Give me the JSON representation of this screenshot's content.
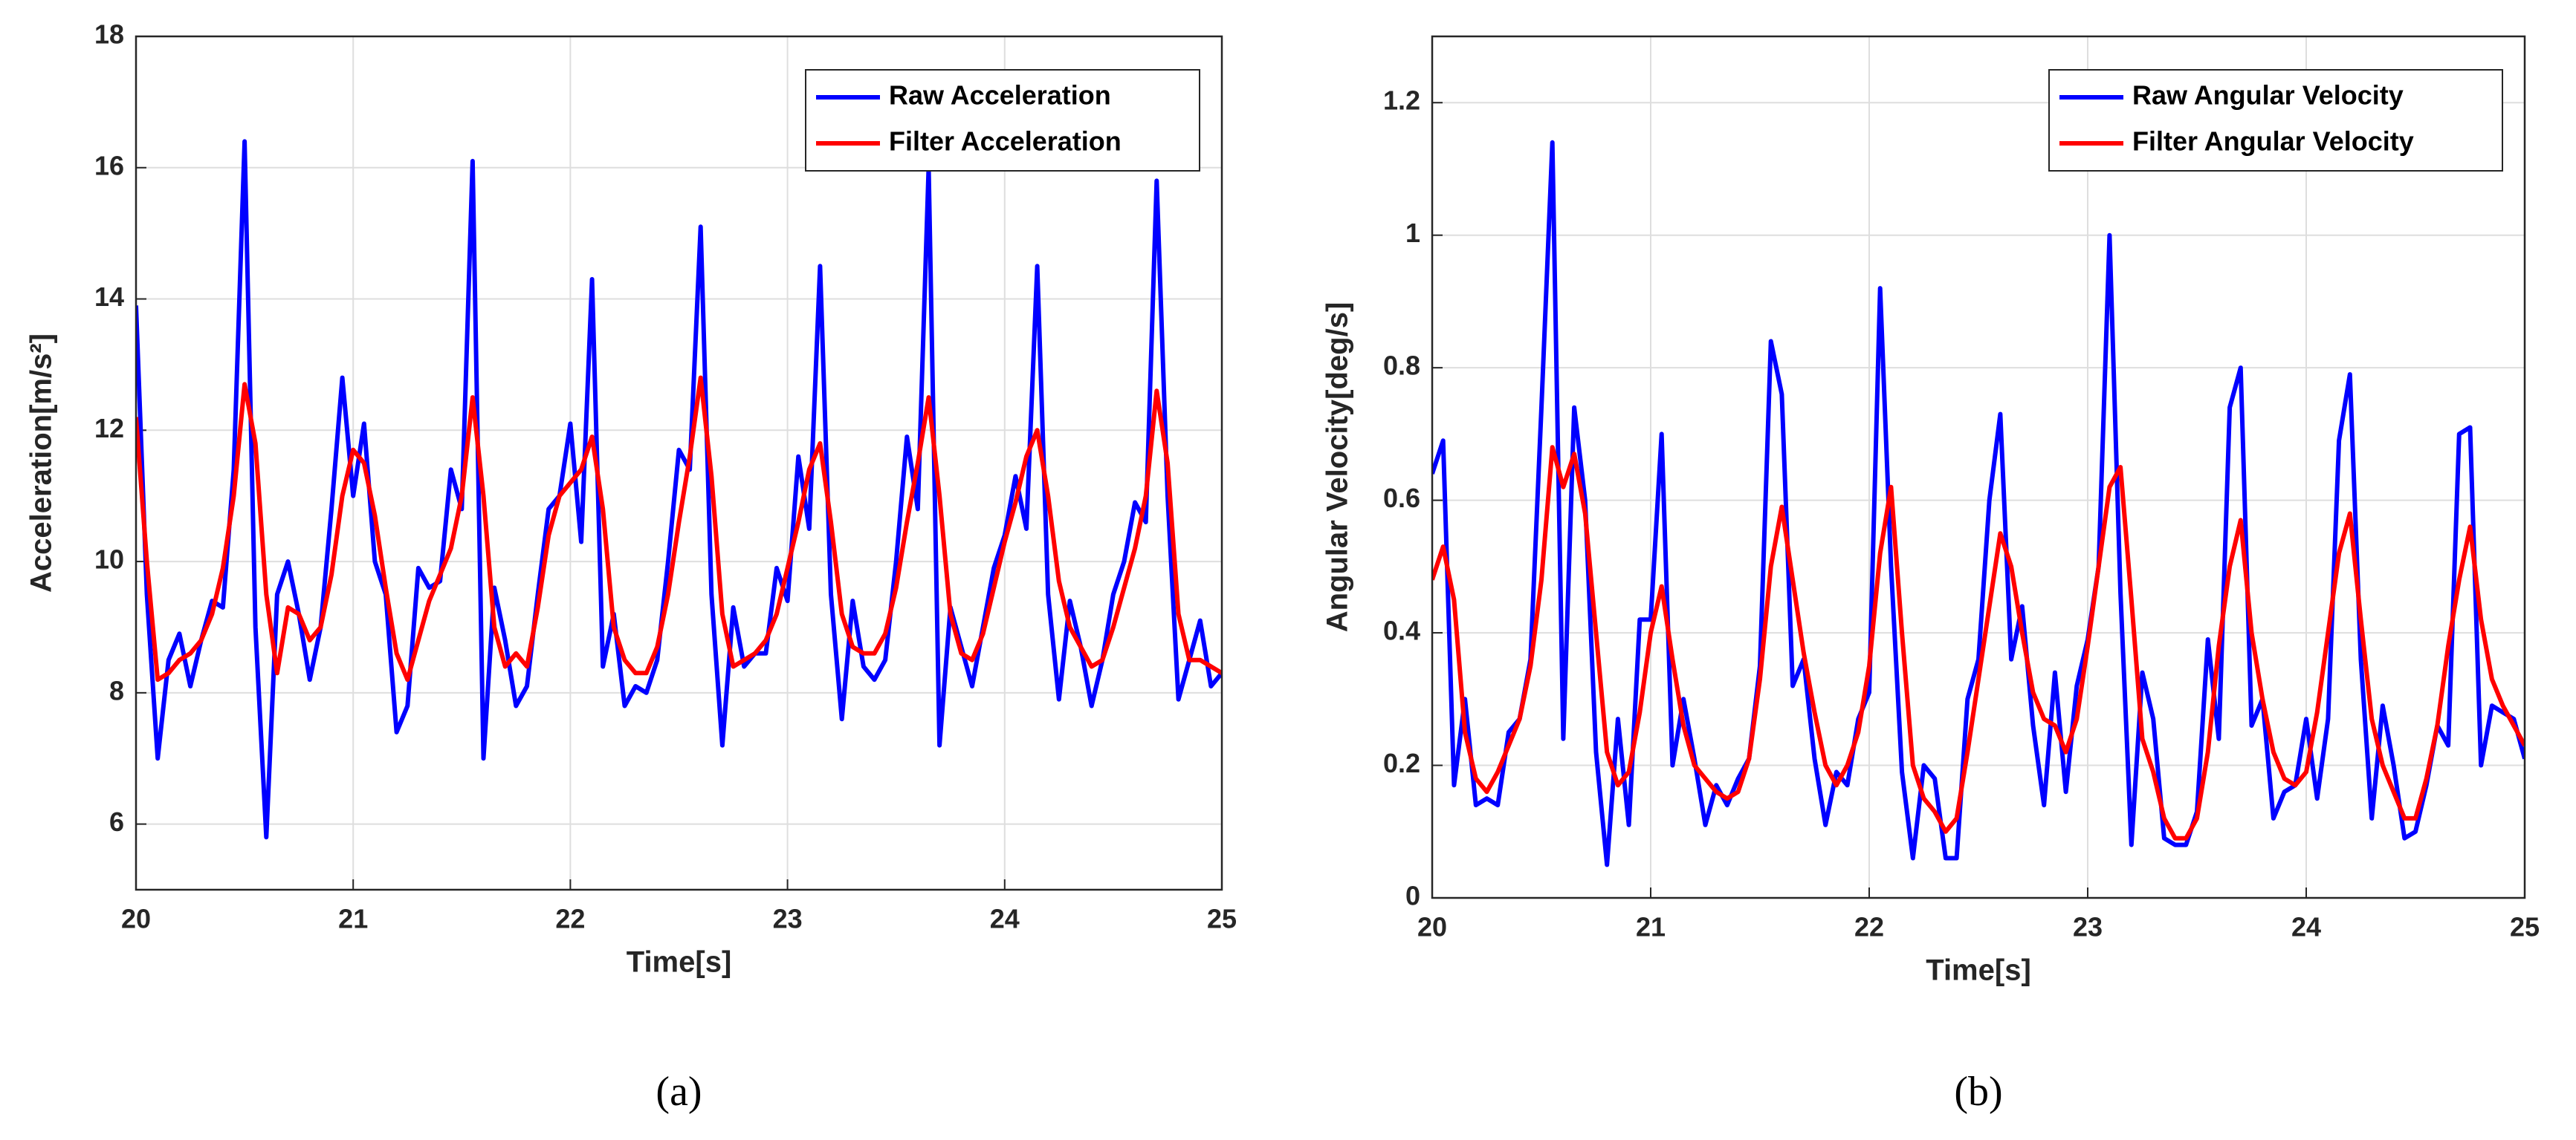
{
  "chart_data": [
    {
      "type": "line",
      "caption": "(a)",
      "x_label": "Time[s]",
      "y_label": "Acceleration[m/s²]",
      "xlim": [
        20,
        25
      ],
      "xticks": [
        20,
        21,
        22,
        23,
        24,
        25
      ],
      "ylim": [
        5,
        18
      ],
      "yticks": [
        6,
        8,
        10,
        12,
        14,
        16,
        18
      ],
      "grid": true,
      "legend": "upper right",
      "x": [
        20,
        20.05,
        20.1,
        20.15,
        20.2,
        20.25,
        20.3,
        20.35,
        20.4,
        20.45,
        20.5,
        20.55,
        20.6,
        20.65,
        20.7,
        20.75,
        20.8,
        20.85,
        20.9,
        20.95,
        21,
        21.05,
        21.1,
        21.15,
        21.2,
        21.25,
        21.3,
        21.35,
        21.4,
        21.45,
        21.5,
        21.55,
        21.6,
        21.65,
        21.7,
        21.75,
        21.8,
        21.85,
        21.9,
        21.95,
        22,
        22.05,
        22.1,
        22.15,
        22.2,
        22.25,
        22.3,
        22.35,
        22.4,
        22.45,
        22.5,
        22.55,
        22.6,
        22.65,
        22.7,
        22.75,
        22.8,
        22.85,
        22.9,
        22.95,
        23,
        23.05,
        23.1,
        23.15,
        23.2,
        23.25,
        23.3,
        23.35,
        23.4,
        23.45,
        23.5,
        23.55,
        23.6,
        23.65,
        23.7,
        23.75,
        23.8,
        23.85,
        23.9,
        23.95,
        24,
        24.05,
        24.1,
        24.15,
        24.2,
        24.25,
        24.3,
        24.35,
        24.4,
        24.45,
        24.5,
        24.55,
        24.6,
        24.65,
        24.7,
        24.75,
        24.8,
        24.85,
        24.9,
        24.95,
        25
      ],
      "series": [
        {
          "name": "Raw Acceleration",
          "color": "#0000ff",
          "values": [
            13.9,
            9.5,
            7.0,
            8.5,
            8.9,
            8.1,
            8.8,
            9.4,
            9.3,
            11.4,
            16.4,
            9.0,
            5.8,
            9.5,
            10.0,
            9.2,
            8.2,
            9.0,
            10.8,
            12.8,
            11.0,
            12.1,
            10.0,
            9.5,
            7.4,
            7.8,
            9.9,
            9.6,
            9.7,
            11.4,
            10.8,
            16.1,
            7.0,
            9.6,
            8.8,
            7.8,
            8.1,
            9.5,
            10.8,
            11.0,
            12.1,
            10.3,
            14.3,
            8.4,
            9.2,
            7.8,
            8.1,
            8.0,
            8.5,
            10.0,
            11.7,
            11.4,
            15.1,
            9.5,
            7.2,
            9.3,
            8.4,
            8.6,
            8.6,
            9.9,
            9.4,
            11.6,
            10.5,
            14.5,
            9.5,
            7.6,
            9.4,
            8.4,
            8.2,
            8.5,
            10.0,
            11.9,
            10.8,
            16.0,
            7.2,
            9.3,
            8.7,
            8.1,
            9.0,
            9.9,
            10.4,
            11.3,
            10.5,
            14.5,
            9.5,
            7.9,
            9.4,
            8.7,
            7.8,
            8.5,
            9.5,
            10.0,
            10.9,
            10.6,
            15.8,
            11.0,
            7.9,
            8.5,
            9.1,
            8.1,
            8.3
          ]
        },
        {
          "name": "Filter Acceleration",
          "color": "#ff0000",
          "values": [
            12.2,
            10.0,
            8.2,
            8.3,
            8.5,
            8.6,
            8.8,
            9.2,
            9.9,
            11.0,
            12.7,
            11.8,
            9.5,
            8.3,
            9.3,
            9.2,
            8.8,
            9.0,
            9.8,
            11.0,
            11.7,
            11.5,
            10.7,
            9.6,
            8.6,
            8.2,
            8.8,
            9.4,
            9.8,
            10.2,
            11.0,
            12.5,
            11.0,
            9.0,
            8.4,
            8.6,
            8.4,
            9.3,
            10.4,
            11.0,
            11.2,
            11.4,
            11.9,
            10.8,
            9.0,
            8.5,
            8.3,
            8.3,
            8.7,
            9.5,
            10.6,
            11.6,
            12.8,
            11.3,
            9.2,
            8.4,
            8.5,
            8.6,
            8.8,
            9.2,
            9.9,
            10.6,
            11.4,
            11.8,
            10.6,
            9.2,
            8.7,
            8.6,
            8.6,
            8.9,
            9.6,
            10.6,
            11.5,
            12.5,
            11.0,
            9.2,
            8.6,
            8.5,
            8.9,
            9.6,
            10.3,
            10.9,
            11.6,
            12.0,
            11.0,
            9.7,
            9.0,
            8.7,
            8.4,
            8.5,
            9.0,
            9.6,
            10.2,
            11.0,
            12.6,
            11.5,
            9.2,
            8.5,
            8.5,
            8.4,
            8.3
          ]
        }
      ]
    },
    {
      "type": "line",
      "caption": "(b)",
      "x_label": "Time[s]",
      "y_label": "Angular Velocity[deg/s]",
      "xlim": [
        20,
        25
      ],
      "xticks": [
        20,
        21,
        22,
        23,
        24,
        25
      ],
      "ylim": [
        0,
        1.3
      ],
      "yticks": [
        0,
        0.2,
        0.4,
        0.6,
        0.8,
        1,
        1.2
      ],
      "grid": true,
      "legend": "upper right",
      "x": [
        20,
        20.05,
        20.1,
        20.15,
        20.2,
        20.25,
        20.3,
        20.35,
        20.4,
        20.45,
        20.5,
        20.55,
        20.6,
        20.65,
        20.7,
        20.75,
        20.8,
        20.85,
        20.9,
        20.95,
        21,
        21.05,
        21.1,
        21.15,
        21.2,
        21.25,
        21.3,
        21.35,
        21.4,
        21.45,
        21.5,
        21.55,
        21.6,
        21.65,
        21.7,
        21.75,
        21.8,
        21.85,
        21.9,
        21.95,
        22,
        22.05,
        22.1,
        22.15,
        22.2,
        22.25,
        22.3,
        22.35,
        22.4,
        22.45,
        22.5,
        22.55,
        22.6,
        22.65,
        22.7,
        22.75,
        22.8,
        22.85,
        22.9,
        22.95,
        23,
        23.05,
        23.1,
        23.15,
        23.2,
        23.25,
        23.3,
        23.35,
        23.4,
        23.45,
        23.5,
        23.55,
        23.6,
        23.65,
        23.7,
        23.75,
        23.8,
        23.85,
        23.9,
        23.95,
        24,
        24.05,
        24.1,
        24.15,
        24.2,
        24.25,
        24.3,
        24.35,
        24.4,
        24.45,
        24.5,
        24.55,
        24.6,
        24.65,
        24.7,
        24.75,
        24.8,
        24.85,
        24.9,
        24.95,
        25
      ],
      "series": [
        {
          "name": "Raw Angular Velocity",
          "color": "#0000ff",
          "values": [
            0.64,
            0.69,
            0.17,
            0.3,
            0.14,
            0.15,
            0.14,
            0.25,
            0.27,
            0.36,
            0.74,
            1.14,
            0.24,
            0.74,
            0.6,
            0.22,
            0.05,
            0.27,
            0.11,
            0.42,
            0.42,
            0.7,
            0.2,
            0.3,
            0.21,
            0.11,
            0.17,
            0.14,
            0.18,
            0.21,
            0.35,
            0.84,
            0.76,
            0.32,
            0.36,
            0.21,
            0.11,
            0.19,
            0.17,
            0.27,
            0.31,
            0.92,
            0.5,
            0.19,
            0.06,
            0.2,
            0.18,
            0.06,
            0.06,
            0.3,
            0.36,
            0.6,
            0.73,
            0.36,
            0.44,
            0.26,
            0.14,
            0.34,
            0.16,
            0.32,
            0.39,
            0.5,
            1.0,
            0.46,
            0.08,
            0.34,
            0.27,
            0.09,
            0.08,
            0.08,
            0.13,
            0.39,
            0.24,
            0.74,
            0.8,
            0.26,
            0.3,
            0.12,
            0.16,
            0.17,
            0.27,
            0.15,
            0.27,
            0.69,
            0.79,
            0.36,
            0.12,
            0.29,
            0.2,
            0.09,
            0.1,
            0.17,
            0.26,
            0.23,
            0.7,
            0.71,
            0.2,
            0.29,
            0.28,
            0.27,
            0.21
          ]
        },
        {
          "name": "Filter Angular Velocity",
          "color": "#ff0000",
          "values": [
            0.48,
            0.53,
            0.45,
            0.25,
            0.18,
            0.16,
            0.19,
            0.23,
            0.27,
            0.35,
            0.48,
            0.68,
            0.62,
            0.67,
            0.58,
            0.4,
            0.22,
            0.17,
            0.19,
            0.28,
            0.4,
            0.47,
            0.36,
            0.26,
            0.2,
            0.18,
            0.16,
            0.15,
            0.16,
            0.21,
            0.33,
            0.5,
            0.59,
            0.48,
            0.37,
            0.28,
            0.2,
            0.17,
            0.2,
            0.25,
            0.35,
            0.52,
            0.62,
            0.4,
            0.2,
            0.15,
            0.13,
            0.1,
            0.12,
            0.22,
            0.33,
            0.44,
            0.55,
            0.5,
            0.4,
            0.31,
            0.27,
            0.26,
            0.22,
            0.27,
            0.38,
            0.5,
            0.62,
            0.65,
            0.45,
            0.24,
            0.19,
            0.12,
            0.09,
            0.09,
            0.12,
            0.22,
            0.38,
            0.5,
            0.57,
            0.4,
            0.3,
            0.22,
            0.18,
            0.17,
            0.19,
            0.28,
            0.4,
            0.52,
            0.58,
            0.42,
            0.27,
            0.2,
            0.16,
            0.12,
            0.12,
            0.18,
            0.26,
            0.38,
            0.48,
            0.56,
            0.42,
            0.33,
            0.29,
            0.26,
            0.23
          ]
        }
      ]
    }
  ]
}
